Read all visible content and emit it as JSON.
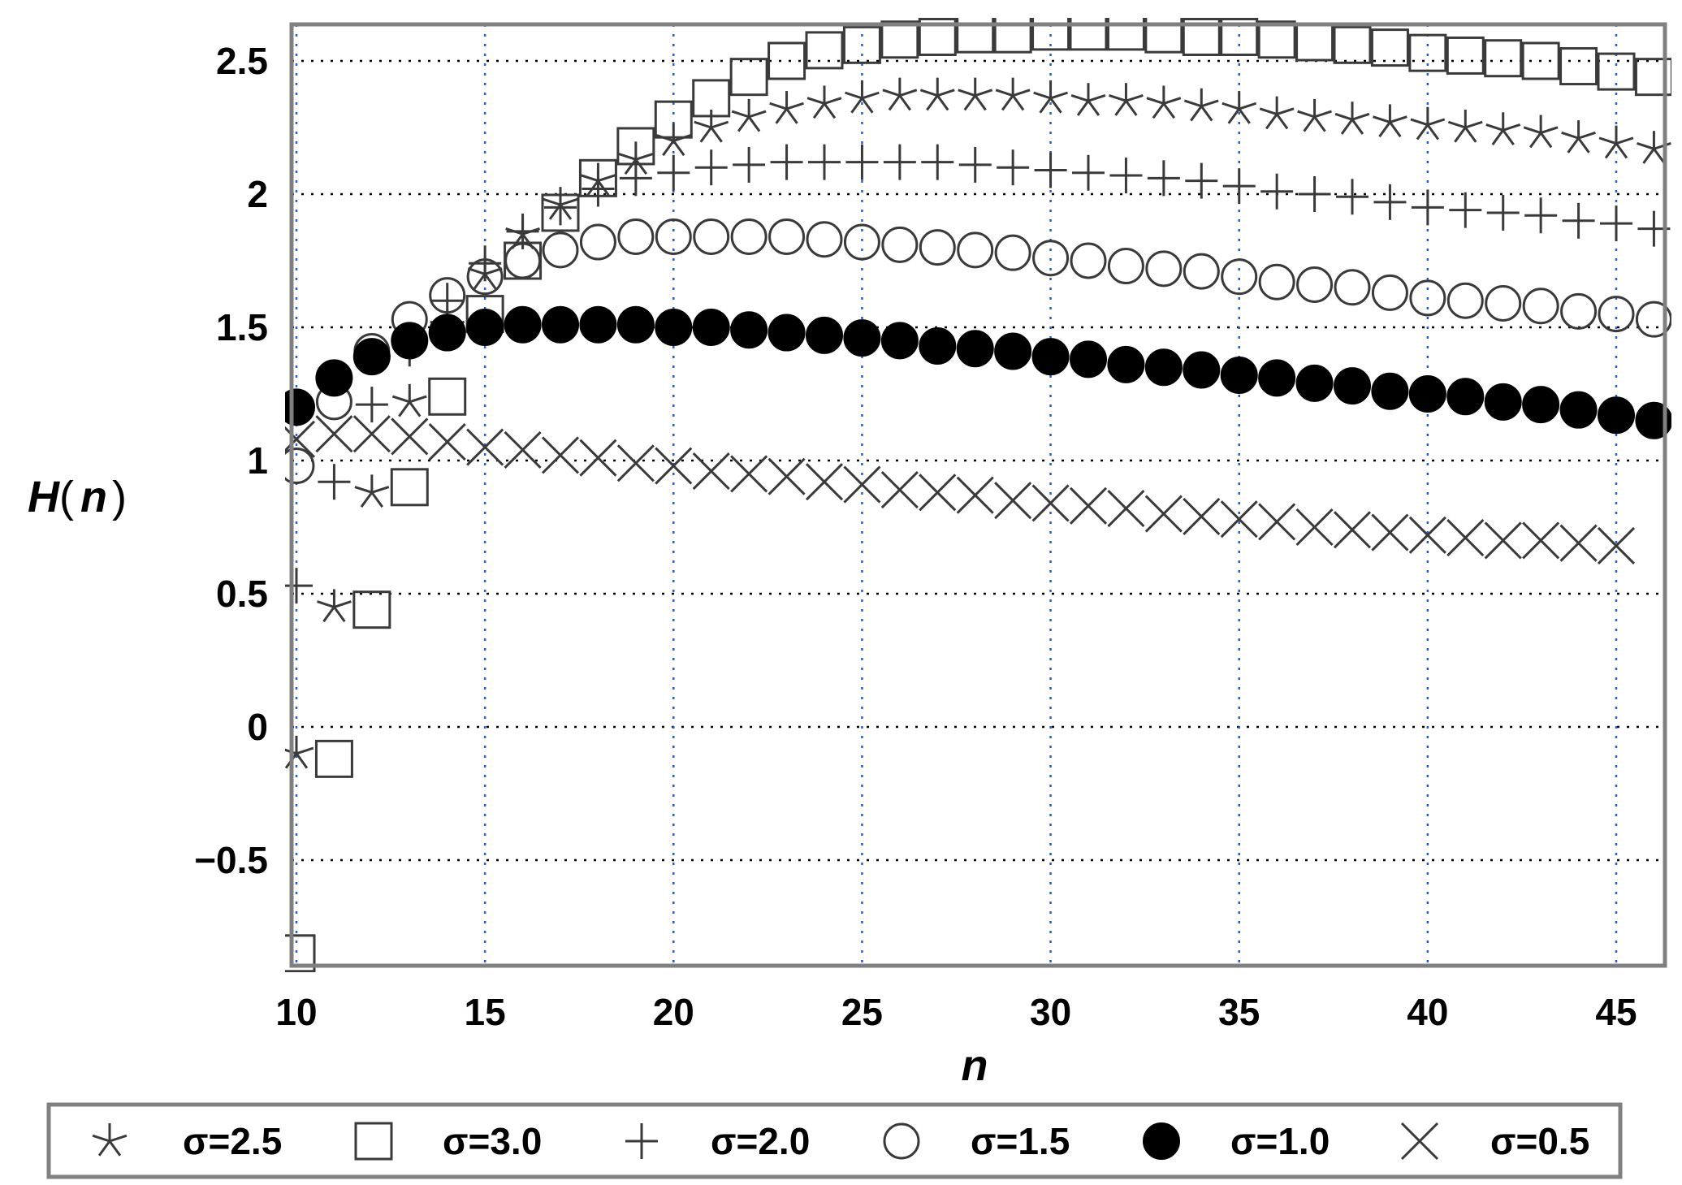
{
  "chart_data": {
    "type": "scatter",
    "title": "",
    "xlabel": "n",
    "ylabel": "H(n)",
    "ylabel_parts": {
      "func": "H",
      "open": "(",
      "var": "n",
      "close": ")"
    },
    "xlim": [
      9.8,
      46.2
    ],
    "ylim": [
      -0.9,
      2.65
    ],
    "xticks": [
      10,
      15,
      20,
      25,
      30,
      35,
      40,
      45
    ],
    "xtick_labels": [
      "10",
      "15",
      "20",
      "25",
      "30",
      "35",
      "40",
      "45"
    ],
    "yticks": [
      -0.5,
      0,
      0.5,
      1,
      1.5,
      2,
      2.5
    ],
    "ytick_labels": [
      "−0.5",
      "0",
      "0.5",
      "1",
      "1.5",
      "2",
      "2.5"
    ],
    "grid": true,
    "legend": "bottom",
    "series": [
      {
        "name": "σ=2.5",
        "marker": "star",
        "x": [
          10,
          11,
          12,
          13,
          14,
          15,
          16,
          17,
          18,
          19,
          20,
          21,
          22,
          23,
          24,
          25,
          26,
          27,
          28,
          29,
          30,
          31,
          32,
          33,
          34,
          35,
          36,
          37,
          38,
          39,
          40,
          41,
          42,
          43,
          44,
          45,
          46
        ],
        "y": [
          -0.1,
          0.45,
          0.88,
          1.22,
          1.5,
          1.7,
          1.85,
          1.96,
          2.05,
          2.13,
          2.2,
          2.25,
          2.29,
          2.32,
          2.34,
          2.36,
          2.37,
          2.37,
          2.37,
          2.37,
          2.36,
          2.35,
          2.35,
          2.34,
          2.33,
          2.32,
          2.3,
          2.29,
          2.28,
          2.27,
          2.26,
          2.25,
          2.24,
          2.23,
          2.21,
          2.19,
          2.17
        ]
      },
      {
        "name": "σ=3.0",
        "marker": "square",
        "x": [
          10,
          11,
          12,
          13,
          14,
          15,
          16,
          17,
          18,
          19,
          20,
          21,
          22,
          23,
          24,
          25,
          26,
          27,
          28,
          29,
          30,
          31,
          32,
          33,
          34,
          35,
          36,
          37,
          38,
          39,
          40,
          41,
          42,
          43,
          44,
          45,
          46
        ],
        "y": [
          -0.85,
          -0.12,
          0.44,
          0.9,
          1.24,
          1.55,
          1.75,
          1.93,
          2.06,
          2.18,
          2.28,
          2.36,
          2.44,
          2.5,
          2.54,
          2.56,
          2.58,
          2.59,
          2.6,
          2.6,
          2.61,
          2.61,
          2.61,
          2.6,
          2.59,
          2.59,
          2.58,
          2.57,
          2.56,
          2.55,
          2.53,
          2.52,
          2.51,
          2.5,
          2.48,
          2.46,
          2.44
        ]
      },
      {
        "name": "σ=2.0",
        "marker": "plus",
        "x": [
          10,
          11,
          12,
          13,
          14,
          15,
          16,
          17,
          18,
          19,
          20,
          21,
          22,
          23,
          24,
          25,
          26,
          27,
          28,
          29,
          30,
          31,
          32,
          33,
          34,
          35,
          36,
          37,
          38,
          39,
          40,
          41,
          42,
          43,
          44,
          45,
          46
        ],
        "y": [
          0.53,
          0.92,
          1.21,
          1.42,
          1.6,
          1.74,
          1.86,
          1.95,
          2.02,
          2.06,
          2.08,
          2.1,
          2.11,
          2.12,
          2.12,
          2.12,
          2.12,
          2.12,
          2.11,
          2.1,
          2.09,
          2.08,
          2.07,
          2.06,
          2.05,
          2.03,
          2.01,
          2,
          1.99,
          1.97,
          1.95,
          1.94,
          1.93,
          1.92,
          1.9,
          1.89,
          1.87
        ]
      },
      {
        "name": "σ=1.5",
        "marker": "circle",
        "x": [
          10,
          11,
          12,
          13,
          14,
          15,
          16,
          17,
          18,
          19,
          20,
          21,
          22,
          23,
          24,
          25,
          26,
          27,
          28,
          29,
          30,
          31,
          32,
          33,
          34,
          35,
          36,
          37,
          38,
          39,
          40,
          41,
          42,
          43,
          44,
          45,
          46
        ],
        "y": [
          0.98,
          1.22,
          1.41,
          1.53,
          1.62,
          1.69,
          1.75,
          1.79,
          1.82,
          1.84,
          1.84,
          1.84,
          1.84,
          1.84,
          1.83,
          1.82,
          1.81,
          1.8,
          1.79,
          1.78,
          1.76,
          1.75,
          1.73,
          1.72,
          1.71,
          1.69,
          1.67,
          1.66,
          1.65,
          1.63,
          1.61,
          1.6,
          1.59,
          1.58,
          1.56,
          1.55,
          1.53
        ]
      },
      {
        "name": "σ=1.0",
        "marker": "filled-circle",
        "x": [
          10,
          11,
          12,
          13,
          14,
          15,
          16,
          17,
          18,
          19,
          20,
          21,
          22,
          23,
          24,
          25,
          26,
          27,
          28,
          29,
          30,
          31,
          32,
          33,
          34,
          35,
          36,
          37,
          38,
          39,
          40,
          41,
          42,
          43,
          44,
          45,
          46
        ],
        "y": [
          1.2,
          1.31,
          1.39,
          1.45,
          1.48,
          1.5,
          1.51,
          1.51,
          1.51,
          1.51,
          1.5,
          1.5,
          1.49,
          1.48,
          1.47,
          1.46,
          1.45,
          1.43,
          1.42,
          1.41,
          1.39,
          1.38,
          1.36,
          1.35,
          1.34,
          1.32,
          1.31,
          1.29,
          1.28,
          1.26,
          1.25,
          1.24,
          1.22,
          1.21,
          1.19,
          1.17,
          1.15
        ]
      },
      {
        "name": "σ=0.5",
        "marker": "x",
        "x": [
          10,
          11,
          12,
          13,
          14,
          15,
          16,
          17,
          18,
          19,
          20,
          21,
          22,
          23,
          24,
          25,
          26,
          27,
          28,
          29,
          30,
          31,
          32,
          33,
          34,
          35,
          36,
          37,
          38,
          39,
          40,
          41,
          42,
          43,
          44,
          45
        ],
        "y": [
          1.08,
          1.1,
          1.1,
          1.09,
          1.07,
          1.05,
          1.04,
          1.02,
          1.01,
          0.99,
          0.98,
          0.96,
          0.95,
          0.94,
          0.92,
          0.91,
          0.89,
          0.88,
          0.87,
          0.85,
          0.84,
          0.83,
          0.82,
          0.8,
          0.79,
          0.78,
          0.77,
          0.75,
          0.74,
          0.73,
          0.72,
          0.71,
          0.7,
          0.7,
          0.69,
          0.68
        ]
      }
    ]
  }
}
